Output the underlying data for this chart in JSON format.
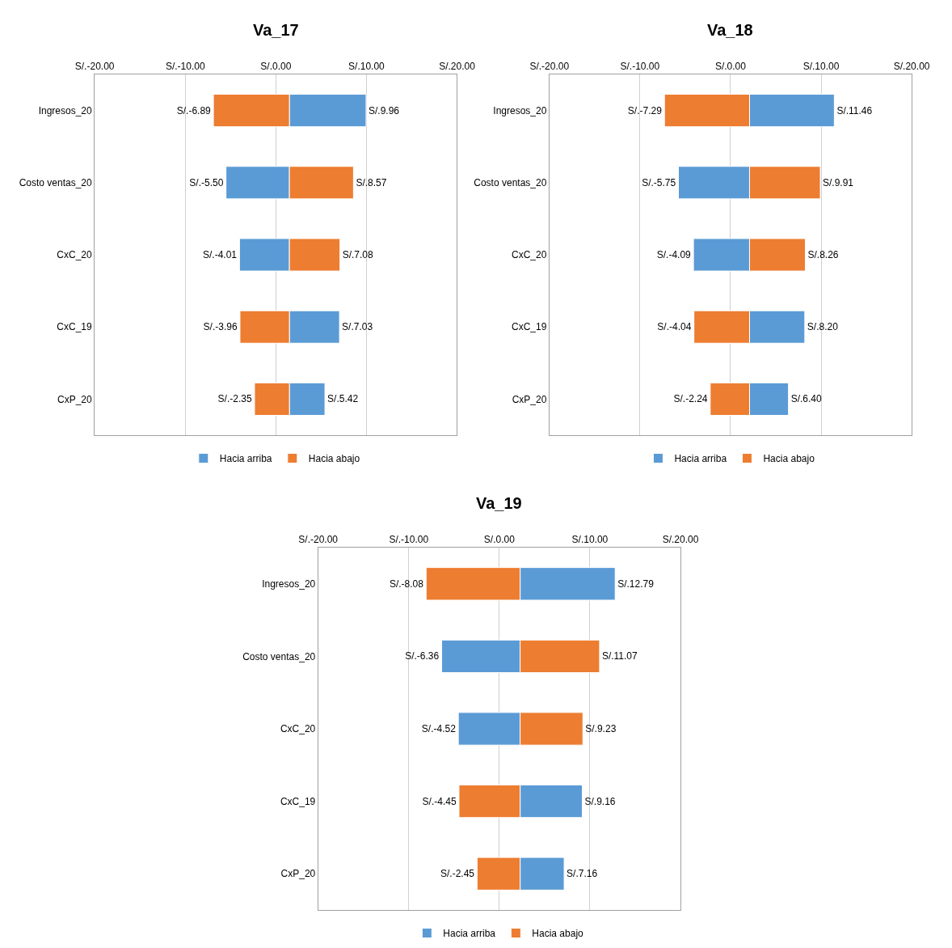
{
  "chart_data": [
    {
      "type": "bar",
      "title": "Va_17",
      "orientation": "horizontal",
      "categories": [
        "Ingresos_20",
        "Costo ventas_20",
        "CxC_20",
        "CxC_19",
        "CxP_20"
      ],
      "xlim": [
        -20,
        20
      ],
      "xticks": [
        {
          "value": -20,
          "label": "S/.-20.00"
        },
        {
          "value": -10,
          "label": "S/.-10.00"
        },
        {
          "value": 0,
          "label": "S/.0.00"
        },
        {
          "value": 10,
          "label": "S/.10.00"
        },
        {
          "value": 20,
          "label": "S/.20.00"
        }
      ],
      "grid": "x",
      "legend": "bottom",
      "series": [
        {
          "name": "Hacia arriba",
          "color": "#5b9bd5",
          "base": [
            1.5,
            1.5,
            1.5,
            1.5,
            1.5
          ],
          "values": [
            8.46,
            -7.0,
            -5.51,
            5.53,
            3.92
          ],
          "value_labels": [
            "S/.9.96",
            "S/.-5.50",
            "S/.-4.01",
            "S/.7.03",
            "S/.5.42"
          ]
        },
        {
          "name": "Hacia abajo",
          "color": "#ed7d31",
          "base": [
            1.5,
            1.5,
            1.5,
            1.5,
            1.5
          ],
          "values": [
            -8.39,
            7.07,
            5.58,
            -5.46,
            -3.85
          ],
          "value_labels": [
            "S/.-6.89",
            "S/.8.57",
            "S/.7.08",
            "S/.-3.96",
            "S/.-2.35"
          ]
        }
      ]
    },
    {
      "type": "bar",
      "title": "Va_18",
      "orientation": "horizontal",
      "categories": [
        "Ingresos_20",
        "Costo ventas_20",
        "CxC_20",
        "CxC_19",
        "CxP_20"
      ],
      "xlim": [
        -20,
        20
      ],
      "xticks": [
        {
          "value": -20,
          "label": "S/.-20.00"
        },
        {
          "value": -10,
          "label": "S/.-10.00"
        },
        {
          "value": 0,
          "label": "S/.0.00"
        },
        {
          "value": 10,
          "label": "S/.10.00"
        },
        {
          "value": 20,
          "label": "S/.20.00"
        }
      ],
      "grid": "x",
      "legend": "bottom",
      "series": [
        {
          "name": "Hacia arriba",
          "color": "#5b9bd5",
          "base": [
            2.1,
            2.1,
            2.1,
            2.1,
            2.1
          ],
          "values": [
            9.36,
            -7.85,
            -6.19,
            6.1,
            4.3
          ],
          "value_labels": [
            "S/.11.46",
            "S/.-5.75",
            "S/.-4.09",
            "S/.8.20",
            "S/.6.40"
          ]
        },
        {
          "name": "Hacia abajo",
          "color": "#ed7d31",
          "base": [
            2.1,
            2.1,
            2.1,
            2.1,
            2.1
          ],
          "values": [
            -9.39,
            7.81,
            6.16,
            -6.14,
            -4.34
          ],
          "value_labels": [
            "S/.-7.29",
            "S/.9.91",
            "S/.8.26",
            "S/.-4.04",
            "S/.-2.24"
          ]
        }
      ]
    },
    {
      "type": "bar",
      "title": "Va_19",
      "orientation": "horizontal",
      "categories": [
        "Ingresos_20",
        "Costo ventas_20",
        "CxC_20",
        "CxC_19",
        "CxP_20"
      ],
      "xlim": [
        -20,
        20
      ],
      "xticks": [
        {
          "value": -20,
          "label": "S/.-20.00"
        },
        {
          "value": -10,
          "label": "S/.-10.00"
        },
        {
          "value": 0,
          "label": "S/.0.00"
        },
        {
          "value": 10,
          "label": "S/.10.00"
        },
        {
          "value": 20,
          "label": "S/.20.00"
        }
      ],
      "grid": "x",
      "legend": "bottom",
      "series": [
        {
          "name": "Hacia arriba",
          "color": "#5b9bd5",
          "base": [
            2.3,
            2.3,
            2.3,
            2.3,
            2.3
          ],
          "values": [
            10.49,
            -8.66,
            -6.82,
            6.86,
            4.86
          ],
          "value_labels": [
            "S/.12.79",
            "S/.-6.36",
            "S/.-4.52",
            "S/.9.16",
            "S/.7.16"
          ]
        },
        {
          "name": "Hacia abajo",
          "color": "#ed7d31",
          "base": [
            2.3,
            2.3,
            2.3,
            2.3,
            2.3
          ],
          "values": [
            -10.38,
            8.77,
            6.93,
            -6.75,
            -4.75
          ],
          "value_labels": [
            "S/.-8.08",
            "S/.11.07",
            "S/.9.23",
            "S/.-4.45",
            "S/.-2.45"
          ]
        }
      ]
    }
  ]
}
